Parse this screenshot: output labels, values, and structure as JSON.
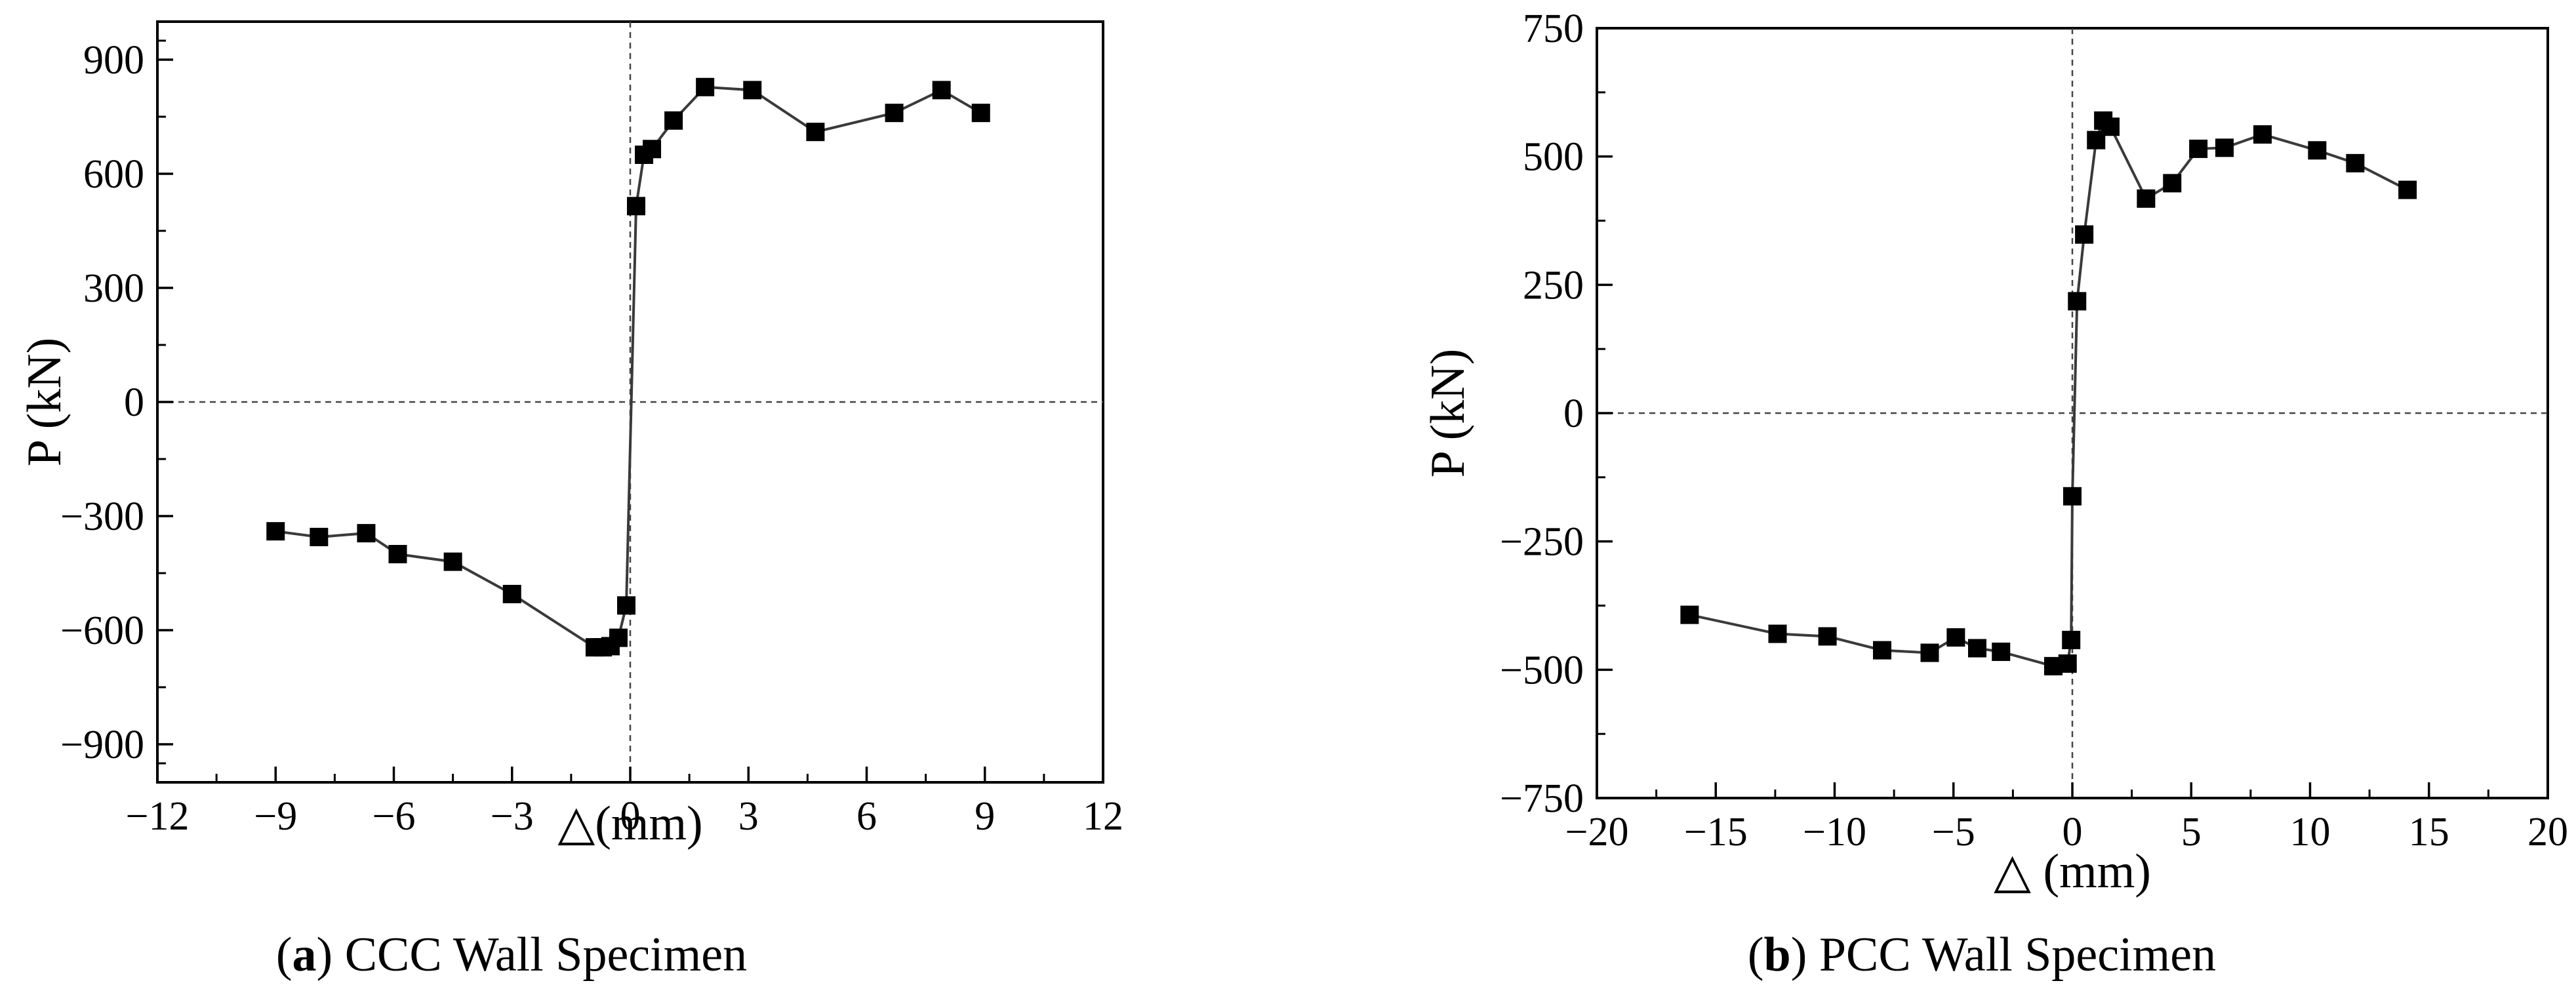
{
  "chart_data": [
    {
      "type": "line",
      "panel": "a",
      "caption_letter": "a",
      "caption_text": " CCC Wall Specimen",
      "xlabel": "△(mm)",
      "ylabel": "P (kN)",
      "xlim": [
        -12,
        12
      ],
      "ylim": [
        -1000,
        1000
      ],
      "xticks": [
        -12,
        -9,
        -6,
        -3,
        0,
        3,
        6,
        9,
        12
      ],
      "yticks": [
        -900,
        -600,
        -300,
        0,
        300,
        600,
        900
      ],
      "xtick_labels": [
        "−12",
        "−9",
        "−6",
        "−3",
        "0",
        "3",
        "6",
        "9",
        "12"
      ],
      "ytick_labels": [
        "−900",
        "−600",
        "−300",
        "0",
        "300",
        "600",
        "900"
      ],
      "reference_lines": {
        "x": 0,
        "y": 0
      },
      "series": [
        {
          "name": "CCC Wall Specimen",
          "color": "#3a3a3a",
          "marker_color": "#000000",
          "x": [
            -9.0,
            -7.9,
            -6.7,
            -5.9,
            -4.5,
            -3.0,
            -0.9,
            -0.7,
            -0.5,
            -0.3,
            -0.1,
            0.15,
            0.35,
            0.55,
            1.1,
            1.9,
            3.1,
            4.7,
            6.7,
            7.9,
            8.9
          ],
          "y": [
            -340,
            -355,
            -345,
            -400,
            -420,
            -505,
            -645,
            -645,
            -642,
            -620,
            -535,
            515,
            650,
            665,
            740,
            828,
            820,
            710,
            760,
            820,
            760
          ]
        }
      ]
    },
    {
      "type": "line",
      "panel": "b",
      "caption_letter": "b",
      "caption_text": " PCC Wall Specimen",
      "xlabel": "△ (mm)",
      "ylabel": "P (kN)",
      "xlim": [
        -20,
        20
      ],
      "ylim": [
        -750,
        750
      ],
      "xticks": [
        -20,
        -15,
        -10,
        -5,
        0,
        5,
        10,
        15,
        20
      ],
      "yticks": [
        -750,
        -500,
        -250,
        0,
        250,
        500,
        750
      ],
      "xtick_labels": [
        "−20",
        "−15",
        "−10",
        "−5",
        "0",
        "5",
        "10",
        "15",
        "20"
      ],
      "ytick_labels": [
        "−750",
        "−500",
        "−250",
        "0",
        "250",
        "500",
        "750"
      ],
      "reference_lines": {
        "x": 0,
        "y": 0
      },
      "series": [
        {
          "name": "PCC Wall Specimen",
          "color": "#3a3a3a",
          "marker_color": "#000000",
          "x": [
            -16.1,
            -12.4,
            -10.3,
            -8.0,
            -6.0,
            -4.9,
            -4.0,
            -3.0,
            -0.8,
            -0.2,
            -0.05,
            0.0,
            0.2,
            0.5,
            1.0,
            1.3,
            1.6,
            3.1,
            4.2,
            5.3,
            6.4,
            8.0,
            10.3,
            11.9,
            14.1
          ],
          "y": [
            -393,
            -430,
            -435,
            -462,
            -467,
            -437,
            -458,
            -465,
            -493,
            -488,
            -442,
            -162,
            218,
            348,
            532,
            570,
            558,
            418,
            448,
            515,
            517,
            543,
            512,
            487,
            435
          ]
        }
      ]
    }
  ]
}
